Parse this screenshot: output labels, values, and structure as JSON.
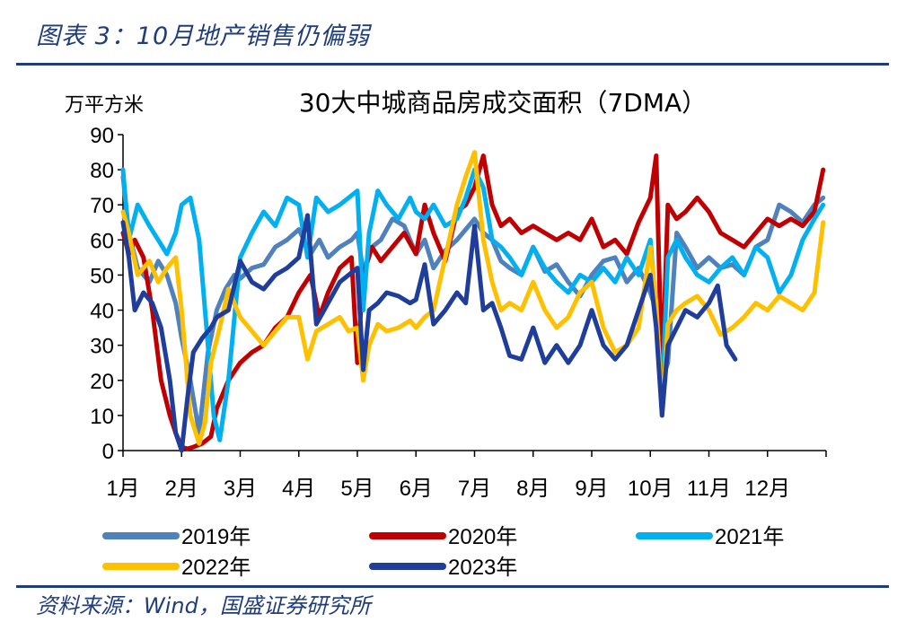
{
  "figure": {
    "caption": "图表 3：10月地产销售仍偏弱",
    "source": "资料来源：Wind，国盛证券研究所"
  },
  "chart_data": {
    "type": "line",
    "title": "30大中城商品房成交面积（7DMA）",
    "ylabel": "万平方米",
    "ylim": [
      0,
      90
    ],
    "yticks": [
      0,
      10,
      20,
      30,
      40,
      50,
      60,
      70,
      80,
      90
    ],
    "x_unit": "month",
    "xlim": [
      1,
      13
    ],
    "xticks": [
      "1月",
      "2月",
      "3月",
      "4月",
      "5月",
      "6月",
      "7月",
      "8月",
      "9月",
      "10月",
      "11月",
      "12月"
    ],
    "legend_placement": "bottom",
    "series": [
      {
        "name": "2019年",
        "color": "#4f81bd",
        "x": [
          1.0,
          1.1,
          1.25,
          1.45,
          1.6,
          1.75,
          1.9,
          2.0,
          2.15,
          2.3,
          2.45,
          2.6,
          2.75,
          2.9,
          3.0,
          3.2,
          3.4,
          3.6,
          3.8,
          4.0,
          4.2,
          4.35,
          4.5,
          4.7,
          4.9,
          5.0,
          5.1,
          5.25,
          5.4,
          5.6,
          5.8,
          6.0,
          6.15,
          6.3,
          6.5,
          6.7,
          6.85,
          7.0,
          7.15,
          7.3,
          7.45,
          7.6,
          7.8,
          8.0,
          8.2,
          8.4,
          8.6,
          8.8,
          9.0,
          9.2,
          9.4,
          9.6,
          9.8,
          10.0,
          10.1,
          10.2,
          10.3,
          10.45,
          10.6,
          10.8,
          11.0,
          11.2,
          11.4,
          11.6,
          11.8,
          12.0,
          12.2,
          12.4,
          12.6,
          12.8,
          12.95
        ],
        "values": [
          78,
          62,
          52,
          48,
          54,
          50,
          42,
          32,
          20,
          5,
          28,
          40,
          46,
          50,
          49,
          52,
          53,
          58,
          60,
          63,
          56,
          60,
          55,
          58,
          60,
          62,
          51,
          58,
          60,
          66,
          64,
          56,
          60,
          52,
          57,
          60,
          63,
          66,
          62,
          60,
          54,
          52,
          50,
          58,
          51,
          53,
          48,
          44,
          50,
          54,
          55,
          48,
          52,
          45,
          40,
          20,
          25,
          62,
          58,
          52,
          55,
          52,
          53,
          50,
          58,
          60,
          70,
          68,
          65,
          70,
          72
        ]
      },
      {
        "name": "2020年",
        "color": "#c00000",
        "x": [
          1.0,
          1.1,
          1.2,
          1.35,
          1.5,
          1.65,
          1.8,
          1.9,
          2.0,
          2.1,
          2.2,
          2.35,
          2.5,
          2.6,
          2.8,
          3.0,
          3.2,
          3.4,
          3.6,
          3.8,
          4.0,
          4.2,
          4.35,
          4.5,
          4.7,
          4.9,
          5.0,
          5.1,
          5.25,
          5.4,
          5.6,
          5.8,
          6.0,
          6.15,
          6.3,
          6.5,
          6.7,
          6.85,
          7.0,
          7.15,
          7.3,
          7.45,
          7.6,
          7.8,
          8.0,
          8.2,
          8.4,
          8.6,
          8.8,
          9.0,
          9.2,
          9.4,
          9.6,
          9.8,
          10.0,
          10.1,
          10.2,
          10.3,
          10.45,
          10.6,
          10.8,
          11.0,
          11.2,
          11.4,
          11.6,
          11.8,
          12.0,
          12.2,
          12.4,
          12.6,
          12.8,
          12.95
        ],
        "values": [
          62,
          56,
          60,
          55,
          40,
          20,
          10,
          5,
          1,
          0.5,
          1,
          2,
          4,
          12,
          20,
          25,
          28,
          30,
          35,
          38,
          45,
          50,
          38,
          45,
          52,
          55,
          25,
          50,
          58,
          54,
          58,
          62,
          56,
          70,
          62,
          54,
          68,
          70,
          75,
          84,
          70,
          64,
          66,
          62,
          64,
          62,
          60,
          62,
          60,
          66,
          58,
          60,
          56,
          65,
          72,
          84,
          20,
          70,
          66,
          68,
          72,
          68,
          62,
          60,
          58,
          62,
          66,
          64,
          66,
          64,
          68,
          80
        ]
      },
      {
        "name": "2021年",
        "color": "#00b0f0",
        "x": [
          1.0,
          1.1,
          1.25,
          1.45,
          1.6,
          1.75,
          1.9,
          2.0,
          2.15,
          2.3,
          2.45,
          2.55,
          2.65,
          2.8,
          3.0,
          3.2,
          3.4,
          3.6,
          3.8,
          4.0,
          4.15,
          4.3,
          4.5,
          4.7,
          4.85,
          5.0,
          5.1,
          5.2,
          5.35,
          5.5,
          5.7,
          5.9,
          6.0,
          6.15,
          6.3,
          6.5,
          6.7,
          6.85,
          7.0,
          7.15,
          7.3,
          7.45,
          7.6,
          7.8,
          8.0,
          8.2,
          8.4,
          8.6,
          8.8,
          9.0,
          9.2,
          9.4,
          9.6,
          9.8,
          10.0,
          10.1,
          10.2,
          10.3,
          10.45,
          10.6,
          10.8,
          11.0,
          11.2,
          11.4,
          11.6,
          11.8,
          12.0,
          12.2,
          12.4,
          12.6,
          12.8,
          12.95
        ],
        "values": [
          80,
          60,
          70,
          64,
          60,
          56,
          62,
          70,
          72,
          60,
          30,
          10,
          3,
          20,
          55,
          62,
          68,
          64,
          72,
          70,
          55,
          72,
          68,
          70,
          72,
          74,
          40,
          62,
          74,
          70,
          66,
          72,
          68,
          66,
          70,
          64,
          66,
          72,
          80,
          75,
          60,
          58,
          55,
          50,
          58,
          52,
          48,
          45,
          50,
          48,
          52,
          48,
          55,
          50,
          60,
          40,
          15,
          55,
          60,
          55,
          50,
          48,
          52,
          55,
          50,
          58,
          55,
          45,
          50,
          60,
          66,
          70
        ]
      },
      {
        "name": "2022年",
        "color": "#ffc000",
        "x": [
          1.0,
          1.1,
          1.25,
          1.45,
          1.6,
          1.75,
          1.9,
          2.0,
          2.15,
          2.3,
          2.4,
          2.5,
          2.65,
          2.8,
          3.0,
          3.2,
          3.4,
          3.6,
          3.8,
          4.0,
          4.15,
          4.3,
          4.5,
          4.7,
          4.85,
          5.0,
          5.1,
          5.2,
          5.35,
          5.5,
          5.7,
          5.9,
          6.0,
          6.15,
          6.3,
          6.5,
          6.7,
          6.85,
          7.0,
          7.15,
          7.3,
          7.45,
          7.6,
          7.8,
          8.0,
          8.2,
          8.4,
          8.6,
          8.8,
          9.0,
          9.2,
          9.4,
          9.6,
          9.8,
          10.0,
          10.1,
          10.2,
          10.3,
          10.45,
          10.6,
          10.8,
          11.0,
          11.2,
          11.4,
          11.6,
          11.8,
          12.0,
          12.2,
          12.4,
          12.6,
          12.8,
          12.95
        ],
        "values": [
          68,
          62,
          50,
          54,
          48,
          52,
          55,
          40,
          10,
          2,
          8,
          25,
          35,
          46,
          38,
          34,
          30,
          34,
          38,
          38,
          26,
          34,
          36,
          38,
          34,
          35,
          20,
          30,
          36,
          34,
          35,
          37,
          35,
          38,
          40,
          55,
          70,
          78,
          85,
          60,
          48,
          40,
          42,
          40,
          48,
          40,
          35,
          38,
          45,
          48,
          35,
          28,
          30,
          35,
          58,
          42,
          10,
          36,
          40,
          42,
          44,
          40,
          33,
          35,
          38,
          42,
          40,
          44,
          42,
          40,
          45,
          65
        ]
      },
      {
        "name": "2023年",
        "color": "#1f3d9a",
        "x": [
          1.0,
          1.1,
          1.2,
          1.35,
          1.5,
          1.65,
          1.8,
          1.9,
          2.0,
          2.1,
          2.2,
          2.35,
          2.5,
          2.6,
          2.8,
          3.0,
          3.2,
          3.4,
          3.6,
          3.8,
          4.0,
          4.15,
          4.3,
          4.5,
          4.7,
          4.85,
          5.0,
          5.1,
          5.2,
          5.35,
          5.5,
          5.7,
          5.9,
          6.0,
          6.15,
          6.3,
          6.5,
          6.7,
          6.85,
          7.0,
          7.15,
          7.3,
          7.45,
          7.6,
          7.8,
          8.0,
          8.2,
          8.4,
          8.6,
          8.8,
          9.0,
          9.2,
          9.4,
          9.6,
          9.8,
          10.0,
          10.1,
          10.2,
          10.3,
          10.45,
          10.6,
          10.8,
          11.0,
          11.15,
          11.3,
          11.45
        ],
        "values": [
          65,
          55,
          40,
          45,
          42,
          35,
          20,
          5,
          0,
          15,
          28,
          32,
          35,
          38,
          40,
          54,
          48,
          46,
          50,
          52,
          55,
          67,
          36,
          42,
          48,
          50,
          52,
          23,
          40,
          42,
          45,
          44,
          42,
          43,
          53,
          36,
          40,
          45,
          42,
          64,
          40,
          42,
          35,
          27,
          26,
          35,
          25,
          30,
          25,
          30,
          40,
          30,
          26,
          30,
          40,
          50,
          35,
          10,
          30,
          35,
          40,
          38,
          42,
          47,
          30,
          26
        ]
      }
    ]
  }
}
